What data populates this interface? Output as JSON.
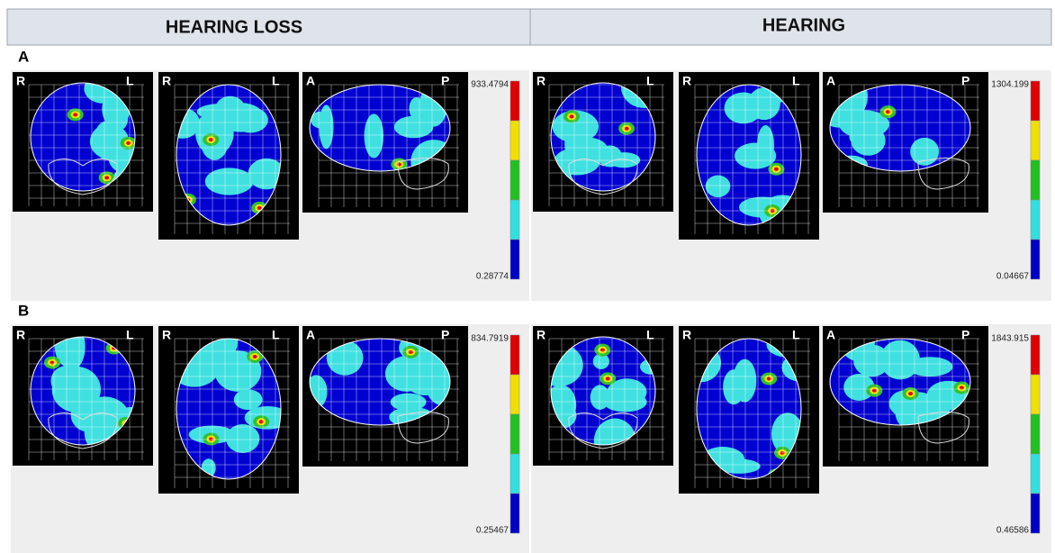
{
  "header": {
    "columns": [
      "HEARING LOSS",
      "HEARING"
    ]
  },
  "rows": [
    {
      "label": "A",
      "panels": [
        {
          "views": [
            {
              "left": "R",
              "right": "L"
            },
            {
              "left": "R",
              "right": "L"
            },
            {
              "left": "A",
              "right": "P"
            }
          ],
          "scale_max": "933.4794",
          "scale_min": "0.28774"
        },
        {
          "views": [
            {
              "left": "R",
              "right": "L"
            },
            {
              "left": "R",
              "right": "L"
            },
            {
              "left": "A",
              "right": "P"
            }
          ],
          "scale_max": "1304.199",
          "scale_min": "0.04667"
        }
      ]
    },
    {
      "label": "B",
      "panels": [
        {
          "views": [
            {
              "left": "R",
              "right": "L"
            },
            {
              "left": "R",
              "right": "L"
            },
            {
              "left": "A",
              "right": "P"
            }
          ],
          "scale_max": "834.7919",
          "scale_min": "0.25467"
        },
        {
          "views": [
            {
              "left": "R",
              "right": "L"
            },
            {
              "left": "R",
              "right": "L"
            },
            {
              "left": "A",
              "right": "P"
            }
          ],
          "scale_max": "1843.915",
          "scale_min": "0.46586"
        }
      ]
    }
  ]
}
